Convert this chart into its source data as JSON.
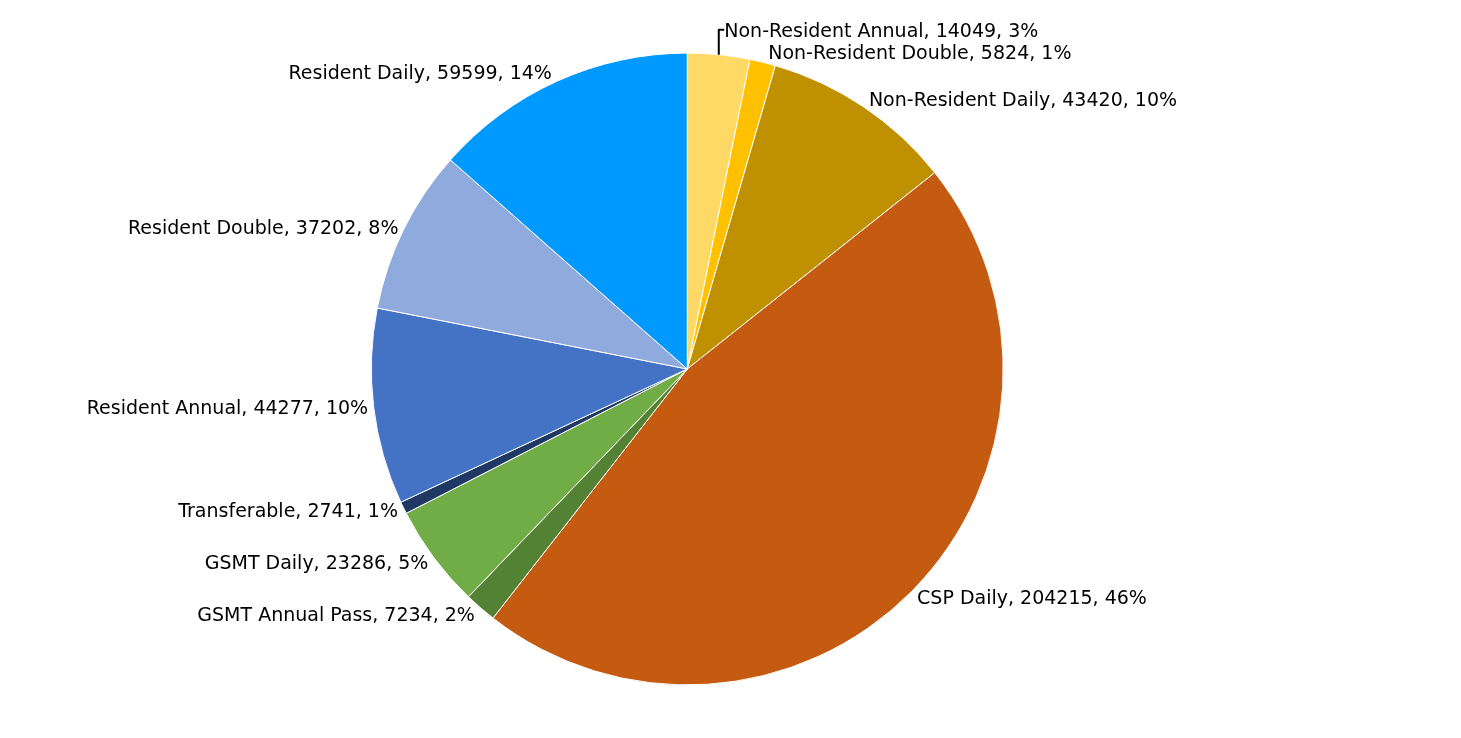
{
  "chart_data": {
    "type": "pie",
    "categories": [
      "Non-Resident Annual",
      "Non-Resident Double",
      "Non-Resident Daily",
      "CSP Daily",
      "GSMT Annual Pass",
      "GSMT Daily",
      "Transferable",
      "Resident Annual",
      "Resident Double",
      "Resident Daily"
    ],
    "values": [
      14049,
      5824,
      43420,
      204215,
      7234,
      23286,
      2741,
      44277,
      37202,
      59599
    ],
    "value_labels": [
      "14049, 3%",
      "5824, 1%",
      "43420, 10%",
      "204215, 46%",
      "7234, 2%",
      "23286, 5%",
      "2741, 1%",
      "44277, 10%",
      "37202, 8%",
      "59599, 14%"
    ],
    "colors": [
      "#ffd966",
      "#ffc000",
      "#bf9000",
      "#c55a11",
      "#548235",
      "#70ad47",
      "#203864",
      "#4472c4",
      "#8faadc",
      "#0099ff"
    ],
    "legend": false
  }
}
